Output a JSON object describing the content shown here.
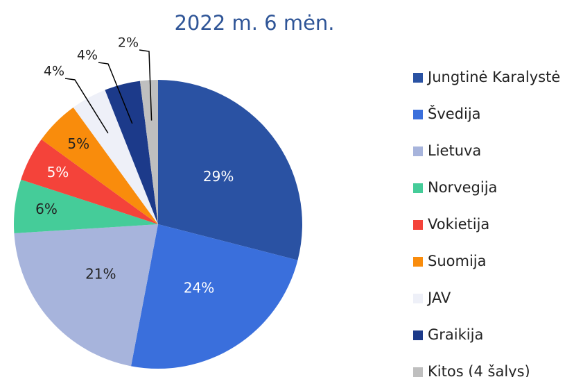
{
  "chart_data": {
    "type": "pie",
    "title": "2022 m. 6 mėn.",
    "categories": [
      "Jungtinė Karalystė",
      "Švedija",
      "Lietuva",
      "Norvegija",
      "Vokietija",
      "Suomija",
      "JAV",
      "Graikija",
      "Kitos (4 šalys)"
    ],
    "values": [
      29,
      24,
      21,
      6,
      5,
      5,
      4,
      4,
      2
    ],
    "value_labels": [
      "29%",
      "24%",
      "21%",
      "6%",
      "5%",
      "5%",
      "4%",
      "4%",
      "2%"
    ],
    "colors": [
      "#2a52a3",
      "#3a6fdc",
      "#a7b4dc",
      "#45cc99",
      "#f4433a",
      "#f98c0c",
      "#eef0f8",
      "#1c3a8a",
      "#bfbfbf"
    ],
    "legend": "right"
  }
}
